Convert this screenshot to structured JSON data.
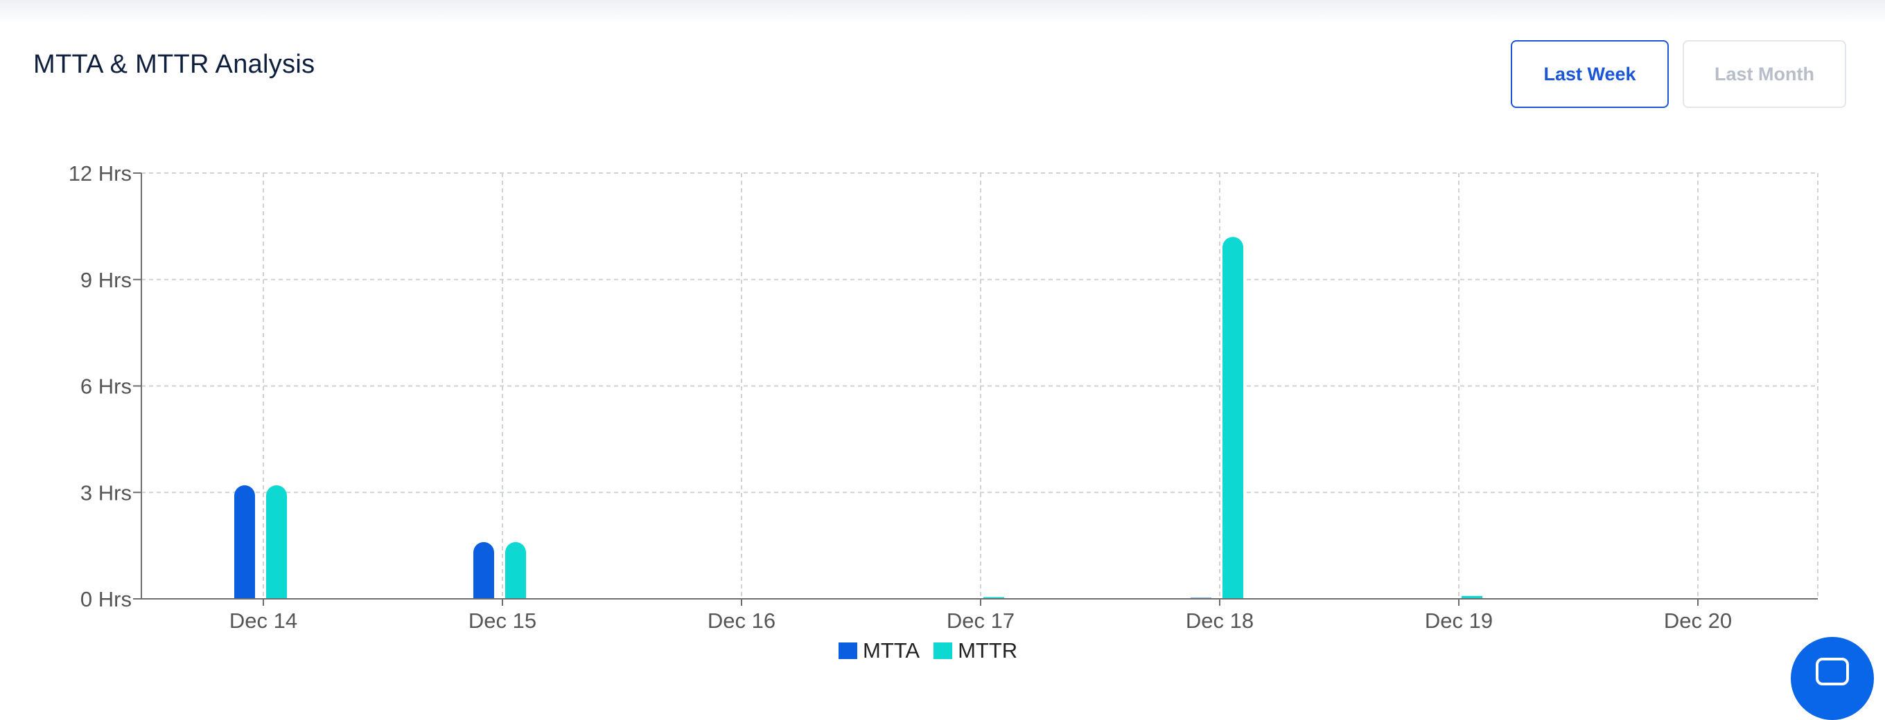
{
  "header": {
    "title": "MTTA & MTTR Analysis",
    "buttons": [
      {
        "label": "Last Week",
        "active": true
      },
      {
        "label": "Last Month",
        "active": false
      }
    ]
  },
  "colors": {
    "mtta": "#0b5ee0",
    "mttr": "#0ed8d2",
    "grid": "#cfd2d6",
    "axis": "#6d6d6d",
    "tick_text": "#555555"
  },
  "chat_launcher": {
    "icon": "chat-bubble-icon"
  },
  "chart_data": {
    "type": "bar",
    "title": "MTTA & MTTR Analysis",
    "categories": [
      "Dec 14",
      "Dec 15",
      "Dec 16",
      "Dec 17",
      "Dec 18",
      "Dec 19",
      "Dec 20"
    ],
    "y_ticks": [
      "0 Hrs",
      "3 Hrs",
      "6 Hrs",
      "9 Hrs",
      "12 Hrs"
    ],
    "ylim": [
      0,
      12
    ],
    "grid": true,
    "legend_position": "bottom-center",
    "series": [
      {
        "name": "MTTA",
        "values": [
          3.2,
          1.6,
          0,
          0,
          0.03,
          0.02,
          0
        ]
      },
      {
        "name": "MTTR",
        "values": [
          3.2,
          1.6,
          0,
          0.05,
          10.2,
          0.08,
          0
        ]
      }
    ]
  }
}
